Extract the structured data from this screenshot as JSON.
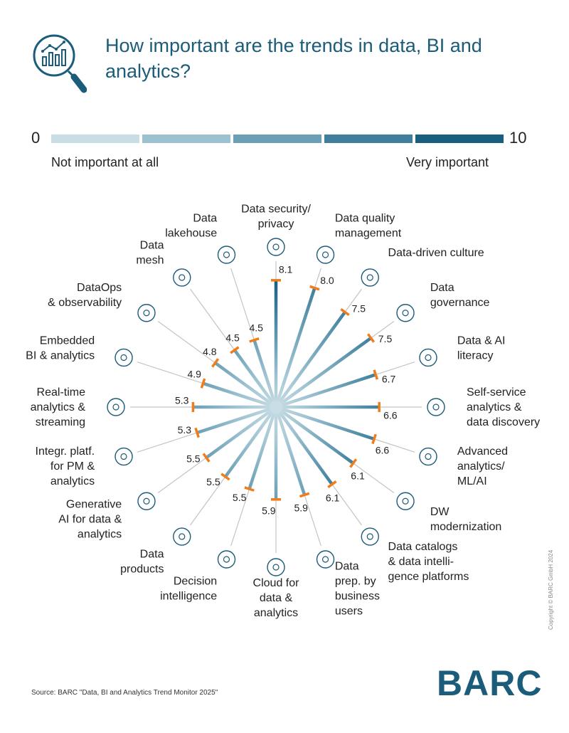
{
  "title": "How important are the trends in data, BI and analytics?",
  "scale": {
    "min_label": "0",
    "max_label": "10",
    "low_caption": "Not important at all",
    "high_caption": "Very important",
    "segment_colors": [
      "#c9dde5",
      "#9cc1d0",
      "#6a9fb5",
      "#3f7f9c",
      "#195e7f"
    ]
  },
  "colors": {
    "accent": "#1b5c7a",
    "spoke_gray": "#c4c4c4",
    "marker": "#f07d19"
  },
  "chart_data": {
    "type": "radial bar",
    "scale_range": [
      0,
      10
    ],
    "categories": [
      "Data security/ privacy",
      "Data quality management",
      "Data-driven culture",
      "Data governance",
      "Data & AI literacy",
      "Self-service analytics & data discovery",
      "Advanced analytics/ ML/AI",
      "DW modernization",
      "Data catalogs & data intelli- gence platforms",
      "Data prep. by business users",
      "Cloud for data & analytics",
      "Decision intelligence",
      "Data products",
      "Generative AI for data & analytics",
      "Integr. platf. for PM & analytics",
      "Real-time analytics & streaming",
      "Embedded BI & analytics",
      "DataOps & observability",
      "Data mesh",
      "Data lakehouse"
    ],
    "values": [
      8.1,
      8.0,
      7.5,
      7.5,
      6.7,
      6.6,
      6.6,
      6.1,
      6.1,
      5.9,
      5.9,
      5.5,
      5.5,
      5.5,
      5.3,
      5.3,
      4.9,
      4.8,
      4.5,
      4.5
    ],
    "value_labels": [
      "8.1",
      "8.0",
      "7.5",
      "7.5",
      "6.7",
      "6.6",
      "6.6",
      "6.1",
      "6.1",
      "5.9",
      "5.9",
      "5.5",
      "5.5",
      "5.5",
      "5.3",
      "5.3",
      "4.9",
      "4.8",
      "4.5",
      "4.5"
    ],
    "label_lines": [
      [
        "Data security/",
        "privacy"
      ],
      [
        "Data quality",
        "management"
      ],
      [
        "Data-driven culture"
      ],
      [
        "Data",
        "governance"
      ],
      [
        "Data & AI",
        "literacy"
      ],
      [
        "Self-service",
        "analytics &",
        "data discovery"
      ],
      [
        "Advanced",
        "analytics/",
        "ML/AI"
      ],
      [
        "DW",
        "modernization"
      ],
      [
        "Data catalogs",
        "& data intelli-",
        "gence platforms"
      ],
      [
        "Data",
        "prep. by",
        "business",
        "users"
      ],
      [
        "Cloud for",
        "data &",
        "analytics"
      ],
      [
        "Decision",
        "intelligence"
      ],
      [
        "Data",
        "products"
      ],
      [
        "Generative",
        "AI for data &",
        "analytics"
      ],
      [
        "Integr. platf.",
        "for PM &",
        "analytics"
      ],
      [
        "Real-time",
        "analytics &",
        "streaming"
      ],
      [
        "Embedded",
        "BI & analytics"
      ],
      [
        "DataOps",
        "& observability"
      ],
      [
        "Data",
        "mesh"
      ],
      [
        "Data",
        "lakehouse"
      ]
    ],
    "icons": [
      "shield-database-icon",
      "database-check-icon",
      "globe-people-icon",
      "institution-icon",
      "open-book-icon",
      "head-tools-icon",
      "eye-gear-icon",
      "house-circle-icon",
      "newspaper-icon",
      "atom-icon",
      "cloud-gear-icon",
      "head-lightbulb-icon",
      "monitor-chart-icon",
      "robot-icon",
      "network-nodes-icon",
      "magnifier-chart-icon",
      "gear-chart-icon",
      "infinity-icon",
      "graph-nodes-icon",
      "database-waves-icon"
    ]
  },
  "source": "Source: BARC \"Data, BI and Analytics Trend Monitor 2025\"",
  "copyright": "Copyright © BARC GmbH 2024",
  "logo": "BARC"
}
